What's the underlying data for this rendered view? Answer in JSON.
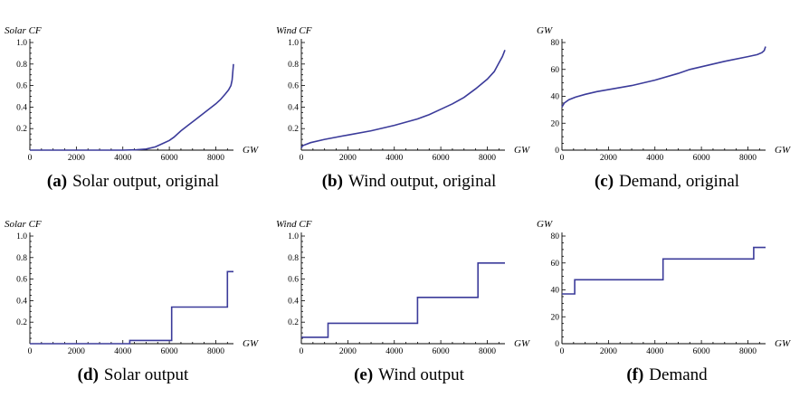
{
  "chart_data": [
    {
      "type": "line",
      "caption_letter": "(a)",
      "caption_text": "Solar output, original",
      "ylabel": "Solar CF",
      "xlabel": "GW",
      "xlim": [
        0,
        8760
      ],
      "ylim": [
        0,
        1.0
      ],
      "xticks": [
        0,
        2000,
        4000,
        6000,
        8000
      ],
      "yticks": [
        0.2,
        0.4,
        0.6,
        0.8,
        1.0
      ],
      "ytick_labels": [
        "0.2",
        "0.4",
        "0.6",
        "0.8",
        "1.0"
      ],
      "series": [
        {
          "x": [
            0,
            4000,
            4600,
            5000,
            5400,
            5700,
            6000,
            6200,
            6500,
            6800,
            7100,
            7400,
            7700,
            8000,
            8200,
            8400,
            8550,
            8650,
            8700,
            8730,
            8760
          ],
          "y": [
            0,
            0,
            0.003,
            0.01,
            0.03,
            0.06,
            0.09,
            0.12,
            0.18,
            0.23,
            0.28,
            0.33,
            0.38,
            0.43,
            0.47,
            0.52,
            0.56,
            0.6,
            0.65,
            0.72,
            0.8
          ]
        }
      ]
    },
    {
      "type": "line",
      "caption_letter": "(b)",
      "caption_text": "Wind output, original",
      "ylabel": "Wind CF",
      "xlabel": "GW",
      "xlim": [
        0,
        8760
      ],
      "ylim": [
        0,
        1.0
      ],
      "xticks": [
        0,
        2000,
        4000,
        6000,
        8000
      ],
      "yticks": [
        0.2,
        0.4,
        0.6,
        0.8,
        1.0
      ],
      "ytick_labels": [
        "0.2",
        "0.4",
        "0.6",
        "0.8",
        "1.0"
      ],
      "series": [
        {
          "x": [
            0,
            50,
            150,
            400,
            1000,
            2000,
            3000,
            4000,
            5000,
            5500,
            6000,
            6500,
            7000,
            7500,
            8000,
            8300,
            8500,
            8650,
            8760
          ],
          "y": [
            0.02,
            0.04,
            0.05,
            0.07,
            0.1,
            0.14,
            0.18,
            0.23,
            0.29,
            0.33,
            0.38,
            0.43,
            0.49,
            0.57,
            0.66,
            0.73,
            0.81,
            0.87,
            0.93
          ]
        }
      ]
    },
    {
      "type": "line",
      "caption_letter": "(c)",
      "caption_text": "Demand, original",
      "ylabel": "GW",
      "xlabel": "GW",
      "xlim": [
        0,
        8760
      ],
      "ylim": [
        0,
        80
      ],
      "xticks": [
        0,
        2000,
        4000,
        6000,
        8000
      ],
      "yticks": [
        0,
        20,
        40,
        60,
        80
      ],
      "ytick_labels": [
        "0",
        "20",
        "40",
        "60",
        "80"
      ],
      "series": [
        {
          "x": [
            0,
            100,
            300,
            600,
            1000,
            1500,
            2000,
            3000,
            4000,
            5000,
            5500,
            6000,
            7000,
            8000,
            8400,
            8600,
            8700,
            8760
          ],
          "y": [
            32,
            35,
            37.5,
            39.5,
            41.5,
            43.5,
            45,
            48,
            52,
            57,
            60,
            62,
            66,
            69.5,
            71,
            72.5,
            74,
            77
          ]
        }
      ]
    },
    {
      "type": "line",
      "step": true,
      "caption_letter": "(d)",
      "caption_text": "Solar output",
      "ylabel": "Solar CF",
      "xlabel": "GW",
      "xlim": [
        0,
        8760
      ],
      "ylim": [
        0,
        1.0
      ],
      "xticks": [
        0,
        2000,
        4000,
        6000,
        8000
      ],
      "yticks": [
        0.2,
        0.4,
        0.6,
        0.8,
        1.0
      ],
      "ytick_labels": [
        "0.2",
        "0.4",
        "0.6",
        "0.8",
        "1.0"
      ],
      "series": [
        {
          "x": [
            0,
            4300,
            4300,
            6100,
            6100,
            8500,
            8500,
            8760
          ],
          "y": [
            0,
            0,
            0.03,
            0.03,
            0.34,
            0.34,
            0.67,
            0.67
          ]
        }
      ]
    },
    {
      "type": "line",
      "step": true,
      "caption_letter": "(e)",
      "caption_text": "Wind output",
      "ylabel": "Wind CF",
      "xlabel": "GW",
      "xlim": [
        0,
        8760
      ],
      "ylim": [
        0,
        1.0
      ],
      "xticks": [
        0,
        2000,
        4000,
        6000,
        8000
      ],
      "yticks": [
        0.2,
        0.4,
        0.6,
        0.8,
        1.0
      ],
      "ytick_labels": [
        "0.2",
        "0.4",
        "0.6",
        "0.8",
        "1.0"
      ],
      "series": [
        {
          "x": [
            0,
            1150,
            1150,
            5000,
            5000,
            7600,
            7600,
            8760
          ],
          "y": [
            0.06,
            0.06,
            0.19,
            0.19,
            0.43,
            0.43,
            0.75,
            0.75
          ]
        }
      ]
    },
    {
      "type": "line",
      "step": true,
      "caption_letter": "(f)",
      "caption_text": "Demand",
      "ylabel": "GW",
      "xlabel": "GW",
      "xlim": [
        0,
        8760
      ],
      "ylim": [
        0,
        80
      ],
      "xticks": [
        0,
        2000,
        4000,
        6000,
        8000
      ],
      "yticks": [
        0,
        20,
        40,
        60,
        80
      ],
      "ytick_labels": [
        "0",
        "20",
        "40",
        "60",
        "80"
      ],
      "series": [
        {
          "x": [
            0,
            550,
            550,
            4350,
            4350,
            8250,
            8250,
            8760
          ],
          "y": [
            37,
            37,
            47.5,
            47.5,
            63,
            63,
            71.5,
            71.5
          ]
        }
      ]
    }
  ]
}
